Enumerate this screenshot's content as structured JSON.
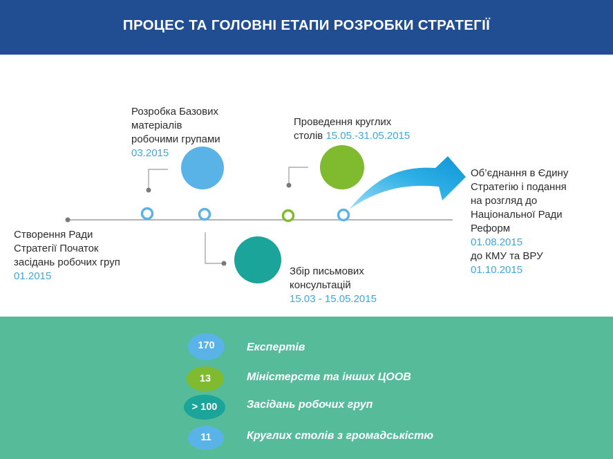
{
  "title": "ПРОЦЕС ТА ГОЛОВНІ ЕТАПИ РОЗРОБКИ СТРАТЕГІЇ",
  "stages": {
    "s1": {
      "lines": [
        "Створення Ради",
        "Стратегії Початок",
        "засідань робочих груп"
      ],
      "date": "01.2015"
    },
    "s2": {
      "lines": [
        "Розробка  Базових",
        "матеріалів",
        "робочими групами"
      ],
      "date": "03.2015"
    },
    "s3": {
      "lines": [
        "Збір письмових",
        "консультацій"
      ],
      "date": "15.03 - 15.05.2015"
    },
    "s4": {
      "line1": "Проведення круглих",
      "line2": "столів",
      "date": "15.05.-31.05.2015"
    },
    "s5": {
      "lines": [
        "Об’єднання в Єдину",
        "Стратегію і подання",
        "на розгляд до",
        "Національної Ради",
        "Реформ"
      ],
      "date1": "01.08.2015",
      "mid": "до КМУ та ВРУ",
      "date2": "01.10.2015"
    }
  },
  "stats": [
    {
      "value": "170",
      "label": "Експертів",
      "color": "#5ab3e6"
    },
    {
      "value": "13",
      "label": "Міністерств та інших ЦООВ",
      "color": "#7fba2f"
    },
    {
      "value": "> 100",
      "label": "Засідань робочих груп",
      "color": "#1ba49a"
    },
    {
      "value": "11",
      "label": "Круглих столів з громадськістю",
      "color": "#5ab3e6"
    }
  ],
  "colors": {
    "header": "#214d92",
    "accent_blue": "#3fa7dd",
    "circle_blue": "#5ab3e6",
    "circle_green": "#7fba2f",
    "circle_teal": "#1ba49a",
    "bottom_panel": "#56bb98"
  }
}
